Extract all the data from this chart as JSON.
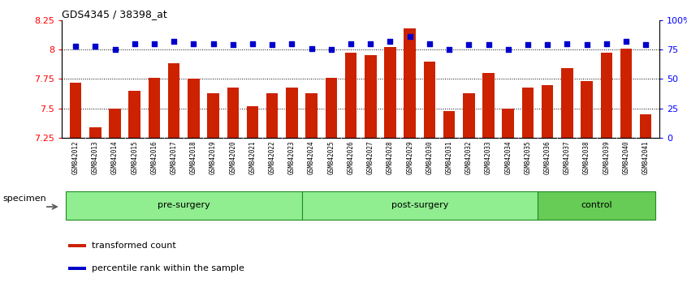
{
  "title": "GDS4345 / 38398_at",
  "samples": [
    "GSM842012",
    "GSM842013",
    "GSM842014",
    "GSM842015",
    "GSM842016",
    "GSM842017",
    "GSM842018",
    "GSM842019",
    "GSM842020",
    "GSM842021",
    "GSM842022",
    "GSM842023",
    "GSM842024",
    "GSM842025",
    "GSM842026",
    "GSM842027",
    "GSM842028",
    "GSM842029",
    "GSM842030",
    "GSM842031",
    "GSM842032",
    "GSM842033",
    "GSM842034",
    "GSM842035",
    "GSM842036",
    "GSM842037",
    "GSM842038",
    "GSM842039",
    "GSM842040",
    "GSM842041"
  ],
  "bar_values": [
    7.72,
    7.34,
    7.5,
    7.65,
    7.76,
    7.88,
    7.75,
    7.63,
    7.68,
    7.52,
    7.63,
    7.68,
    7.63,
    7.76,
    7.97,
    7.95,
    8.02,
    8.18,
    7.9,
    7.48,
    7.63,
    7.8,
    7.5,
    7.68,
    7.7,
    7.84,
    7.73,
    7.97,
    8.01,
    7.45
  ],
  "percentile_values": [
    78,
    78,
    75,
    80,
    80,
    82,
    80,
    80,
    79,
    80,
    79,
    80,
    76,
    75,
    80,
    80,
    82,
    86,
    80,
    75,
    79,
    79,
    75,
    79,
    79,
    80,
    79,
    80,
    82,
    79
  ],
  "groups": [
    {
      "label": "pre-surgery",
      "start": 0,
      "end": 12,
      "color": "#90EE90"
    },
    {
      "label": "post-surgery",
      "start": 12,
      "end": 24,
      "color": "#90EE90"
    },
    {
      "label": "control",
      "start": 24,
      "end": 30,
      "color": "#66CC55"
    }
  ],
  "bar_color": "#CC2200",
  "dot_color": "#0000CC",
  "ylim_left": [
    7.25,
    8.25
  ],
  "ylim_right": [
    0,
    100
  ],
  "yticks_left": [
    7.25,
    7.5,
    7.75,
    8.0,
    8.25
  ],
  "ytick_labels_left": [
    "7.25",
    "7.5",
    "7.75",
    "8",
    "8.25"
  ],
  "yticks_right": [
    0,
    25,
    50,
    75,
    100
  ],
  "ytick_labels_right": [
    "0",
    "25",
    "50",
    "75",
    "100%"
  ],
  "grid_values": [
    7.5,
    7.75,
    8.0
  ],
  "legend_items": [
    {
      "label": "transformed count",
      "color": "#CC2200"
    },
    {
      "label": "percentile rank within the sample",
      "color": "#0000CC"
    }
  ],
  "specimen_label": "specimen",
  "xtick_bg_color": "#CCCCCC",
  "group_border_color": "#228B22"
}
